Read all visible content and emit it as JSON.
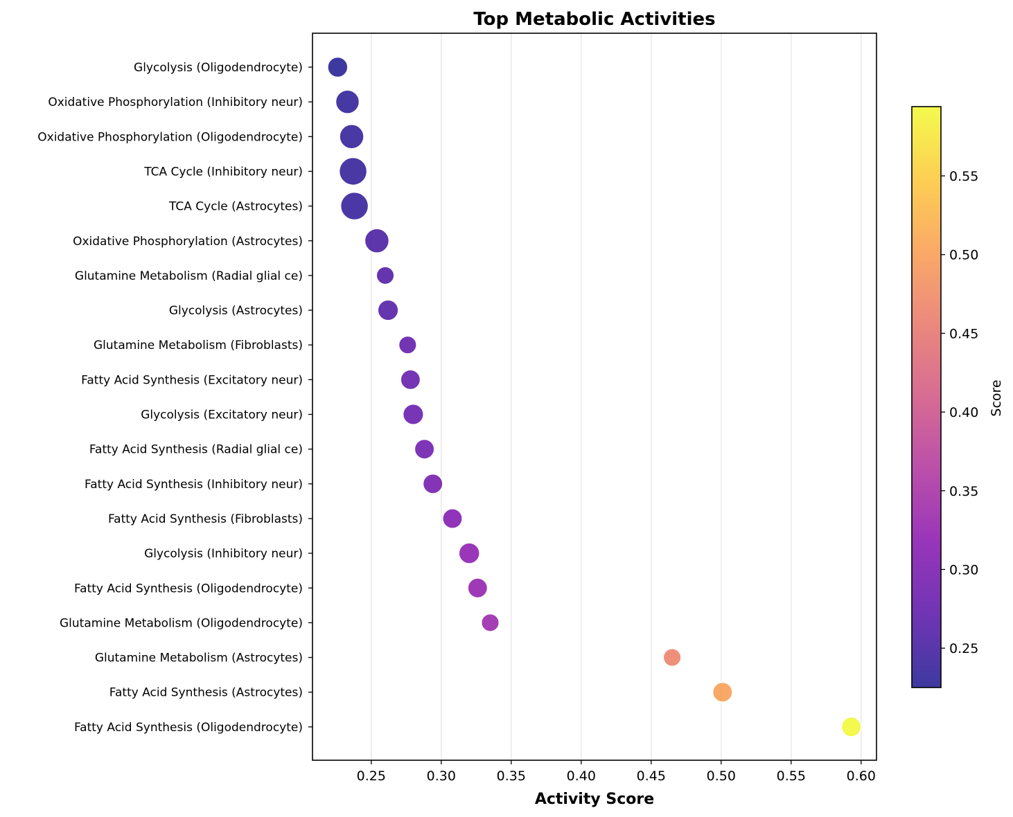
{
  "chart_data": {
    "type": "scatter",
    "title": "Top Metabolic Activities",
    "xlabel": "Activity Score",
    "ylabel": "",
    "xlim": [
      0.208,
      0.611
    ],
    "x_ticks": [
      0.25,
      0.3,
      0.35,
      0.4,
      0.45,
      0.5,
      0.55,
      0.6
    ],
    "x_tick_labels": [
      "0.25",
      "0.30",
      "0.35",
      "0.40",
      "0.45",
      "0.50",
      "0.55",
      "0.60"
    ],
    "grid": "vertical",
    "colormap": "plasma",
    "colorbar": {
      "label": "Score",
      "range": [
        0.225,
        0.594
      ],
      "ticks": [
        0.25,
        0.3,
        0.35,
        0.4,
        0.45,
        0.5,
        0.55
      ],
      "tick_labels": [
        "0.25",
        "0.30",
        "0.35",
        "0.40",
        "0.45",
        "0.50",
        "0.55"
      ]
    },
    "points": [
      {
        "label": "Glycolysis (Oligodendrocyte)",
        "x": 0.226,
        "size": 0.45
      },
      {
        "label": "Oxidative Phosphorylation (Inhibitory neur)",
        "x": 0.233,
        "size": 0.7
      },
      {
        "label": "Oxidative Phosphorylation (Oligodendrocyte)",
        "x": 0.236,
        "size": 0.75
      },
      {
        "label": "TCA Cycle (Inhibitory neur)",
        "x": 0.237,
        "size": 1.0
      },
      {
        "label": "TCA Cycle (Astrocytes)",
        "x": 0.238,
        "size": 1.0
      },
      {
        "label": "Oxidative Phosphorylation (Astrocytes)",
        "x": 0.254,
        "size": 0.75
      },
      {
        "label": "Glutamine Metabolism (Radial glial ce)",
        "x": 0.26,
        "size": 0.28
      },
      {
        "label": "Glycolysis (Astrocytes)",
        "x": 0.262,
        "size": 0.48
      },
      {
        "label": "Glutamine Metabolism (Fibroblasts)",
        "x": 0.276,
        "size": 0.28
      },
      {
        "label": "Fatty Acid Synthesis (Excitatory neur)",
        "x": 0.278,
        "size": 0.42
      },
      {
        "label": "Glycolysis (Excitatory neur)",
        "x": 0.28,
        "size": 0.48
      },
      {
        "label": "Fatty Acid Synthesis (Radial glial ce)",
        "x": 0.288,
        "size": 0.42
      },
      {
        "label": "Fatty Acid Synthesis (Inhibitory neur)",
        "x": 0.294,
        "size": 0.42
      },
      {
        "label": "Fatty Acid Synthesis (Fibroblasts)",
        "x": 0.308,
        "size": 0.42
      },
      {
        "label": "Glycolysis (Inhibitory neur)",
        "x": 0.32,
        "size": 0.5
      },
      {
        "label": "Fatty Acid Synthesis (Oligodendrocyte)",
        "x": 0.326,
        "size": 0.42
      },
      {
        "label": "Glutamine Metabolism (Oligodendrocyte)",
        "x": 0.335,
        "size": 0.28
      },
      {
        "label": "Glutamine Metabolism (Astrocytes)",
        "x": 0.465,
        "size": 0.28
      },
      {
        "label": "Fatty Acid Synthesis (Astrocytes)",
        "x": 0.501,
        "size": 0.42
      },
      {
        "label": "Fatty Acid Synthesis (Oligodendrocyte)",
        "x": 0.593,
        "size": 0.42
      }
    ]
  }
}
